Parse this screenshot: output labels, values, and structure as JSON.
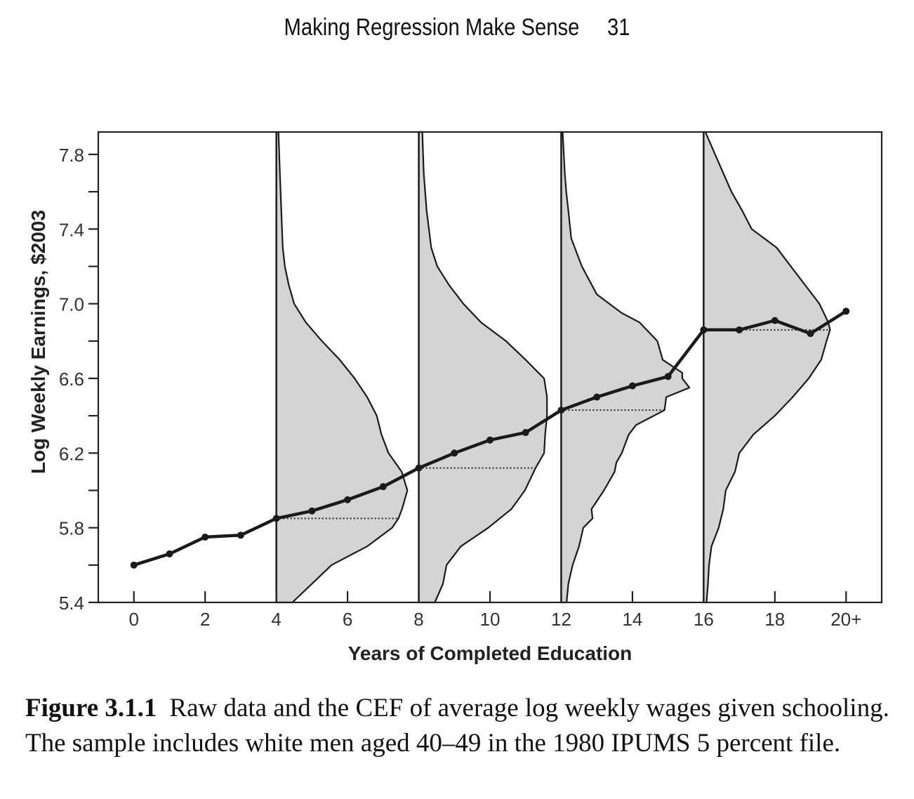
{
  "running_head": {
    "title": "Making Regression Make Sense",
    "page_number": "31"
  },
  "caption": {
    "label": "Figure 3.1.1",
    "text": "Raw data and the CEF of average log weekly wages given schooling. The sample includes white men aged 40–49 in the 1980 IPUMS 5 percent file."
  },
  "chart_data": {
    "type": "line",
    "xlabel": "Years of Completed Education",
    "ylabel": "Log Weekly Earnings, $2003",
    "xlim": [
      -1,
      21
    ],
    "ylim": [
      5.4,
      7.92
    ],
    "x_ticks": [
      0,
      2,
      4,
      6,
      8,
      10,
      12,
      14,
      16,
      18,
      20
    ],
    "x_tick_labels": [
      "0",
      "2",
      "4",
      "6",
      "8",
      "10",
      "12",
      "14",
      "16",
      "18",
      "20+"
    ],
    "y_ticks": [
      5.4,
      5.8,
      6.2,
      6.6,
      7.0,
      7.4,
      7.8
    ],
    "y_tick_labels": [
      "5.4",
      "5.8",
      "6.2",
      "6.6",
      "7.0",
      "7.4",
      "7.8"
    ],
    "y_minor_ticks": [
      5.6,
      6.0,
      6.4,
      6.8,
      7.2,
      7.6
    ],
    "grid": false,
    "series": [
      {
        "x": [
          0,
          1,
          2,
          3,
          4,
          5,
          6,
          7,
          8,
          9,
          10,
          11,
          12,
          13,
          14,
          15,
          16,
          17,
          18,
          19,
          20
        ],
        "y": [
          5.6,
          5.66,
          5.75,
          5.76,
          5.85,
          5.89,
          5.95,
          6.02,
          6.12,
          6.2,
          6.27,
          6.31,
          6.43,
          6.5,
          6.56,
          6.61,
          6.86,
          6.86,
          6.91,
          6.84,
          6.96
        ]
      }
    ],
    "distributions": [
      {
        "x": 4,
        "mean": 5.85,
        "profile_y": [
          5.4,
          5.5,
          5.6,
          5.7,
          5.8,
          5.85,
          5.9,
          6.0,
          6.1,
          6.2,
          6.3,
          6.4,
          6.5,
          6.6,
          6.7,
          6.8,
          6.9,
          7.0,
          7.1,
          7.2,
          7.3,
          7.5,
          7.7,
          7.92
        ],
        "profile_w": [
          0.45,
          1.0,
          1.55,
          2.55,
          3.25,
          3.43,
          3.53,
          3.68,
          3.52,
          3.15,
          2.95,
          2.82,
          2.55,
          2.2,
          1.78,
          1.28,
          0.83,
          0.5,
          0.35,
          0.24,
          0.18,
          0.14,
          0.1,
          0.06
        ]
      },
      {
        "x": 8,
        "mean": 6.12,
        "profile_y": [
          5.4,
          5.5,
          5.6,
          5.7,
          5.8,
          5.9,
          6.0,
          6.12,
          6.2,
          6.3,
          6.4,
          6.5,
          6.6,
          6.7,
          6.8,
          6.9,
          7.0,
          7.1,
          7.2,
          7.3,
          7.5,
          7.7,
          7.92
        ],
        "profile_w": [
          0.45,
          0.68,
          0.78,
          1.18,
          1.95,
          2.6,
          2.98,
          3.28,
          3.52,
          3.55,
          3.6,
          3.6,
          3.52,
          3.0,
          2.45,
          1.75,
          1.25,
          0.85,
          0.52,
          0.35,
          0.22,
          0.14,
          0.1
        ]
      },
      {
        "x": 12,
        "mean": 6.43,
        "profile_y": [
          5.4,
          5.5,
          5.6,
          5.7,
          5.8,
          5.85,
          5.9,
          6.0,
          6.1,
          6.15,
          6.2,
          6.3,
          6.35,
          6.43,
          6.5,
          6.55,
          6.6,
          6.63,
          6.7,
          6.8,
          6.9,
          6.95,
          7.05,
          7.2,
          7.35,
          7.5,
          7.6,
          7.7,
          7.92
        ],
        "profile_w": [
          0.15,
          0.2,
          0.32,
          0.5,
          0.62,
          0.88,
          0.85,
          1.2,
          1.5,
          1.55,
          1.7,
          1.9,
          2.1,
          2.9,
          2.95,
          3.6,
          3.4,
          3.4,
          2.85,
          2.7,
          2.2,
          1.7,
          1.0,
          0.58,
          0.28,
          0.2,
          0.14,
          0.1,
          0.04
        ]
      },
      {
        "x": 16,
        "mean": 6.86,
        "profile_y": [
          5.4,
          5.5,
          5.6,
          5.7,
          5.8,
          5.9,
          6.0,
          6.1,
          6.2,
          6.3,
          6.4,
          6.5,
          6.6,
          6.7,
          6.8,
          6.86,
          6.9,
          7.0,
          7.1,
          7.2,
          7.3,
          7.4,
          7.5,
          7.6,
          7.7,
          7.8,
          7.92
        ],
        "profile_w": [
          0.08,
          0.12,
          0.15,
          0.22,
          0.42,
          0.55,
          0.62,
          0.88,
          1.0,
          1.4,
          2.0,
          2.5,
          2.95,
          3.3,
          3.45,
          3.55,
          3.5,
          3.25,
          2.85,
          2.45,
          2.05,
          1.35,
          1.08,
          0.78,
          0.55,
          0.32,
          0.05
        ]
      }
    ]
  }
}
